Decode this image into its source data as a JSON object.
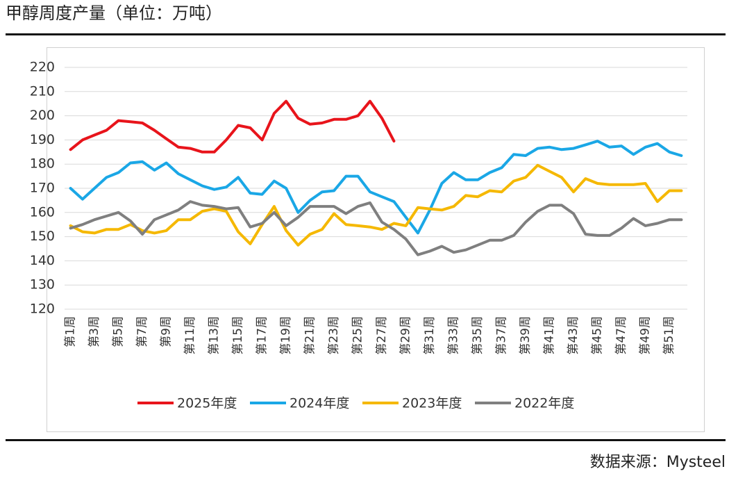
{
  "chart_data": {
    "type": "line",
    "title": "甲醇周度产量（单位：万吨）",
    "source": "数据来源：Mysteel",
    "categories": [
      "第1周",
      null,
      "第3周",
      null,
      "第5周",
      null,
      "第7周",
      null,
      "第9周",
      null,
      "第11周",
      null,
      "第13周",
      null,
      "第15周",
      null,
      "第17周",
      null,
      "第19周",
      null,
      "第21周",
      null,
      "第23周",
      null,
      "第25周",
      null,
      "第27周",
      null,
      "第29周",
      null,
      "第31周",
      null,
      "第33周",
      null,
      "第35周",
      null,
      "第37周",
      null,
      "第39周",
      null,
      "第41周",
      null,
      "第43周",
      null,
      "第45周",
      null,
      "第47周",
      null,
      "第49周",
      null,
      "第51周",
      null
    ],
    "series": [
      {
        "name": "2025年度",
        "color": "#e8141b",
        "values": [
          186,
          190,
          192,
          194,
          198,
          197.5,
          197,
          194,
          190.5,
          187,
          186.5,
          185,
          185,
          190,
          196,
          195,
          190,
          201,
          206,
          199,
          196.5,
          197,
          198.5,
          198.5,
          200,
          206,
          199,
          189.5,
          null,
          null,
          null,
          null,
          null,
          null,
          null,
          null,
          null,
          null,
          null,
          null,
          null,
          null,
          null,
          null,
          null,
          null,
          null,
          null,
          null,
          null,
          null,
          null
        ]
      },
      {
        "name": "2024年度",
        "color": "#1aa7e6",
        "values": [
          170,
          165.5,
          170,
          174.5,
          176.5,
          180.5,
          181,
          177.5,
          180.5,
          176,
          173.5,
          171,
          169.5,
          170.5,
          174.5,
          168,
          167.5,
          173,
          170,
          160,
          165,
          168.5,
          169,
          175,
          175,
          168.5,
          166.5,
          164.5,
          158,
          151.5,
          161,
          172,
          176.5,
          173.5,
          173.5,
          176.5,
          178.5,
          184,
          183.5,
          186.5,
          187,
          186,
          186.5,
          188,
          189.5,
          187,
          187.5,
          184,
          187,
          188.5,
          185,
          183.5
        ]
      },
      {
        "name": "2023年度",
        "color": "#f5b800",
        "values": [
          154.5,
          152,
          151.5,
          153,
          153,
          155,
          152.5,
          151.5,
          152.5,
          157,
          157,
          160.5,
          161.5,
          160.5,
          152,
          147,
          155,
          162.5,
          152.5,
          146.5,
          151,
          153,
          159.5,
          155,
          154.5,
          154,
          153,
          155.5,
          154.5,
          162,
          161.5,
          161,
          162.5,
          167,
          166.5,
          169,
          168.5,
          173,
          174.5,
          179.5,
          177,
          174.5,
          168.5,
          174,
          172,
          171.5,
          171.5,
          171.5,
          172,
          164.5,
          169,
          169
        ]
      },
      {
        "name": "2022年度",
        "color": "#7f7f7f",
        "values": [
          153.5,
          155,
          157,
          158.5,
          160,
          156.5,
          151,
          157,
          159,
          161,
          164.5,
          163,
          162.5,
          161.5,
          162,
          154,
          155.5,
          160,
          154.5,
          158,
          162.5,
          162.5,
          162.5,
          159.5,
          162.5,
          164,
          156,
          153,
          149,
          142.5,
          144,
          146,
          143.5,
          144.5,
          146.5,
          148.5,
          148.5,
          150.5,
          156,
          160.5,
          163,
          163,
          159.5,
          151,
          150.5,
          150.5,
          153.5,
          157.5,
          154.5,
          155.5,
          157,
          157
        ]
      }
    ],
    "ylim": [
      120,
      220
    ],
    "yticks": [
      120,
      130,
      140,
      150,
      160,
      170,
      180,
      190,
      200,
      210,
      220
    ],
    "grid": true,
    "legend": "bottom"
  }
}
